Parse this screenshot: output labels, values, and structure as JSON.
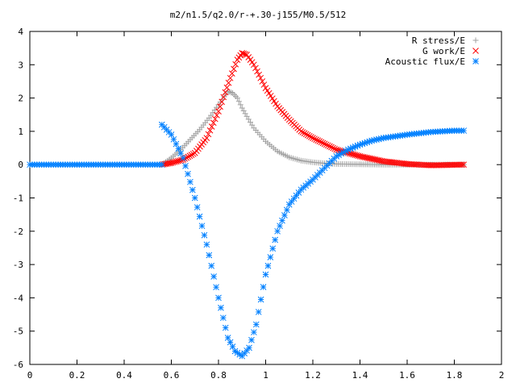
{
  "chart_data": {
    "type": "scatter",
    "title": "m2/n1.5/q2.0/r-+.30-j155/M0.5/512",
    "xlabel": "",
    "ylabel": "",
    "xlim": [
      0,
      2
    ],
    "ylim": [
      -6,
      4
    ],
    "xticks": [
      "0",
      "0.2",
      "0.4",
      "0.6",
      "0.8",
      "1",
      "1.2",
      "1.4",
      "1.6",
      "1.8",
      "2"
    ],
    "yticks": [
      "4",
      "3",
      "2",
      "1",
      "0",
      "-1",
      "-2",
      "-3",
      "-4",
      "-5",
      "-6"
    ],
    "grid": false,
    "legend_position": "top-right",
    "series": [
      {
        "name": "R stress/E",
        "marker": "plus",
        "color": "#a0a0a0",
        "x": [
          0.56,
          0.6,
          0.64,
          0.68,
          0.72,
          0.76,
          0.8,
          0.84,
          0.86,
          0.88,
          0.9,
          0.92,
          0.95,
          1.0,
          1.05,
          1.1,
          1.15,
          1.2,
          1.25,
          1.3,
          1.4,
          1.5,
          1.6,
          1.7,
          1.84
        ],
        "y": [
          0.0,
          0.2,
          0.45,
          0.75,
          1.05,
          1.4,
          1.8,
          2.2,
          2.15,
          2.0,
          1.7,
          1.45,
          1.1,
          0.7,
          0.4,
          0.22,
          0.12,
          0.07,
          0.04,
          0.02,
          0.01,
          0.0,
          0.0,
          0.0,
          0.0
        ]
      },
      {
        "name": "G work/E",
        "marker": "cross",
        "color": "#ff0000",
        "x": [
          0.56,
          0.6,
          0.65,
          0.7,
          0.75,
          0.8,
          0.85,
          0.88,
          0.9,
          0.92,
          0.95,
          1.0,
          1.05,
          1.1,
          1.15,
          1.2,
          1.3,
          1.4,
          1.5,
          1.6,
          1.7,
          1.84
        ],
        "y": [
          0.0,
          0.05,
          0.15,
          0.35,
          0.8,
          1.6,
          2.6,
          3.15,
          3.35,
          3.3,
          3.0,
          2.3,
          1.75,
          1.35,
          1.0,
          0.8,
          0.45,
          0.25,
          0.1,
          0.02,
          -0.02,
          0.0
        ]
      },
      {
        "name": "Acoustic flux/E",
        "marker": "star",
        "color": "#0080ff",
        "x": [
          0,
          0.05,
          0.1,
          0.15,
          0.2,
          0.25,
          0.3,
          0.35,
          0.4,
          0.45,
          0.5,
          0.56,
          0.56,
          0.6,
          0.65,
          0.7,
          0.75,
          0.8,
          0.84,
          0.87,
          0.9,
          0.93,
          0.96,
          1.0,
          1.05,
          1.1,
          1.15,
          1.2,
          1.25,
          1.3,
          1.35,
          1.4,
          1.45,
          1.5,
          1.6,
          1.7,
          1.8,
          1.84
        ],
        "y": [
          0,
          0,
          0,
          0,
          0,
          0,
          0,
          0,
          0,
          0,
          0,
          0,
          1.2,
          0.9,
          0.2,
          -1.0,
          -2.4,
          -4.0,
          -5.2,
          -5.6,
          -5.75,
          -5.5,
          -4.8,
          -3.3,
          -2.0,
          -1.2,
          -0.75,
          -0.45,
          -0.1,
          0.25,
          0.45,
          0.6,
          0.72,
          0.8,
          0.9,
          0.98,
          1.02,
          1.02
        ]
      }
    ]
  }
}
